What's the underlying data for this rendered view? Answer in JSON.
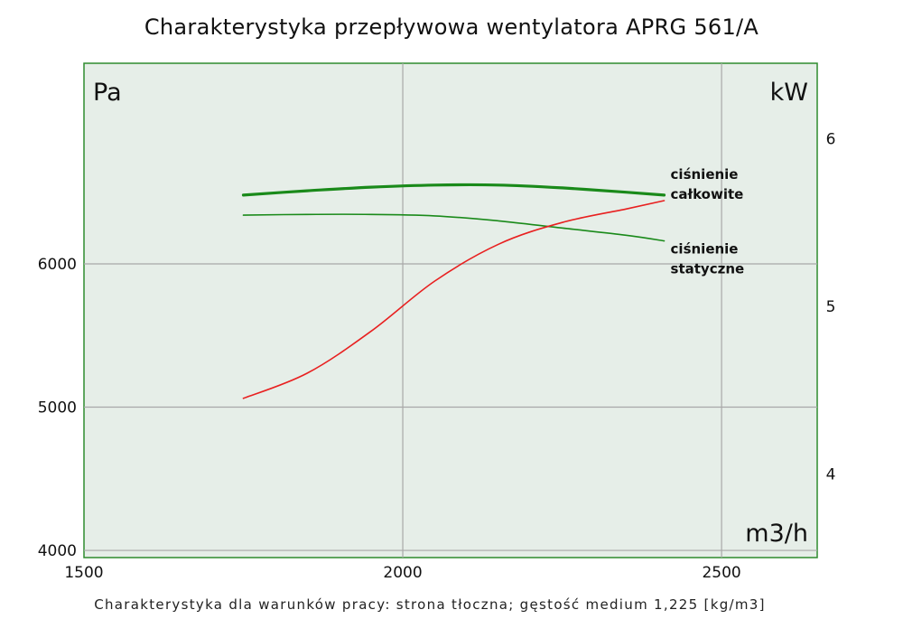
{
  "chart_data": {
    "type": "line",
    "title": "Charakterystyka przepływowa wentylatora APRG 561/A",
    "footer": "Charakterystyka dla warunków pracy: strona tłoczna; gęstość medium 1,225 [kg/m3]",
    "xlabel": "m3/h",
    "ylabel_left": "Pa",
    "ylabel_right": "kW",
    "xlim": [
      1500,
      2650
    ],
    "ylim_left": [
      3950,
      7400
    ],
    "ylim_right": [
      3.5,
      6.45
    ],
    "x_ticks": [
      1500,
      2000,
      2500
    ],
    "x_tick_labels": [
      "1500",
      "2000",
      "2500"
    ],
    "y_left_ticks": [
      4000,
      5000,
      6000
    ],
    "y_left_tick_labels": [
      "4000",
      "5000",
      "6000"
    ],
    "y_right_ticks": [
      4,
      5,
      6
    ],
    "y_right_tick_labels": [
      "4",
      "5",
      "6"
    ],
    "grid": true,
    "series": [
      {
        "name": "ciśnienie całkowite",
        "axis": "left",
        "color": "#1a8a1a",
        "x": [
          1750,
          1850,
          1950,
          2050,
          2150,
          2250,
          2350,
          2410
        ],
        "y": [
          6480,
          6510,
          6535,
          6550,
          6550,
          6530,
          6500,
          6480
        ]
      },
      {
        "name": "ciśnienie statyczne",
        "axis": "left",
        "color": "#1a8a1a",
        "x": [
          1750,
          1850,
          1950,
          2050,
          2150,
          2250,
          2350,
          2410
        ],
        "y": [
          6340,
          6345,
          6345,
          6335,
          6300,
          6250,
          6200,
          6160
        ]
      },
      {
        "name": "",
        "axis": "right",
        "color": "#e82020",
        "x": [
          1750,
          1850,
          1950,
          2050,
          2150,
          2250,
          2350,
          2410
        ],
        "y": [
          4.45,
          4.6,
          4.85,
          5.15,
          5.37,
          5.5,
          5.58,
          5.63
        ]
      }
    ],
    "annotations": [
      {
        "series": 0,
        "lines": [
          "ciśnienie",
          "całkowite"
        ]
      },
      {
        "series": 1,
        "lines": [
          "ciśnienie",
          "statyczne"
        ]
      }
    ]
  }
}
